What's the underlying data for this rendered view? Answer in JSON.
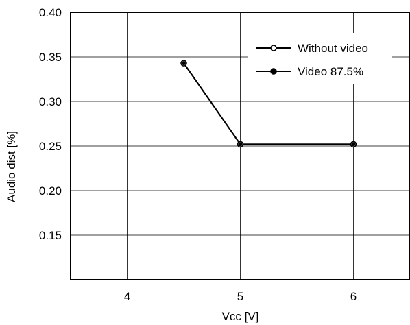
{
  "chart_data": {
    "type": "line",
    "title": "",
    "xlabel": "Vcc [V]",
    "ylabel": "Audio dist [%]",
    "xlim": [
      3.5,
      6.5
    ],
    "ylim": [
      0.1,
      0.4
    ],
    "xticks": [
      4,
      5,
      6
    ],
    "xtick_labels": [
      "4",
      "5",
      "6"
    ],
    "yticks": [
      0.15,
      0.2,
      0.25,
      0.3,
      0.35,
      0.4
    ],
    "ytick_labels": [
      "0.15",
      "0.20",
      "0.25",
      "0.30",
      "0.35",
      "0.40"
    ],
    "grid": true,
    "legend_position": "top-right",
    "series": [
      {
        "name": "Without video",
        "marker": "open-circle",
        "color": "#000000",
        "x": [
          4.5,
          5,
          6
        ],
        "y": [
          0.343,
          0.252,
          0.252
        ]
      },
      {
        "name": "Video 87.5%",
        "marker": "filled-circle",
        "color": "#000000",
        "x": [
          4.5,
          5,
          6
        ],
        "y": [
          0.343,
          0.252,
          0.252
        ]
      }
    ]
  }
}
